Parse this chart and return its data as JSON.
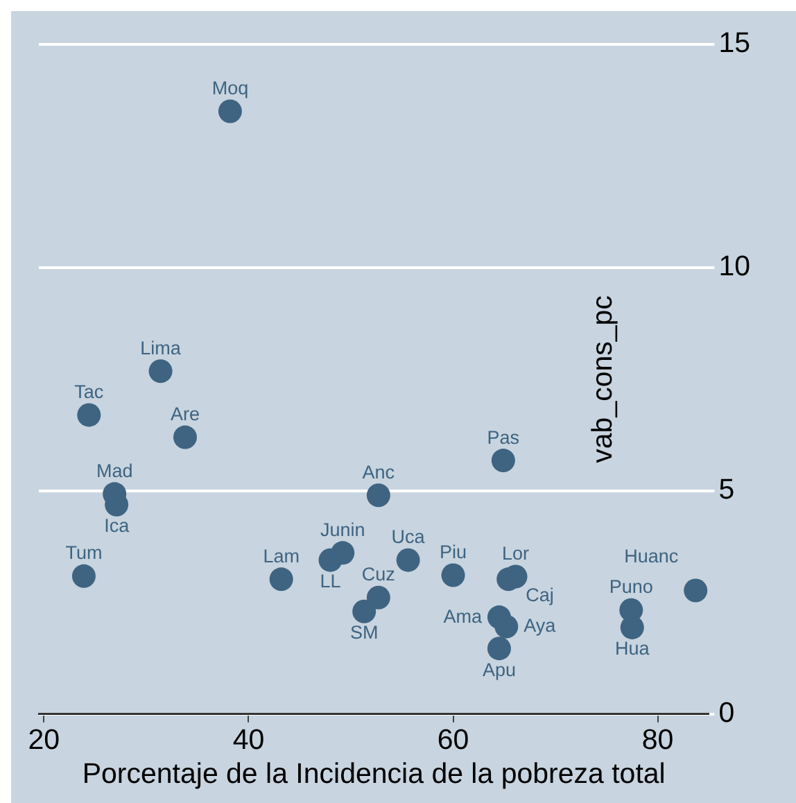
{
  "chart_data": {
    "type": "scatter",
    "xlabel": "Porcentaje de la Incidencia de la pobreza total",
    "ylabel": "vab_cons_pc",
    "x": [
      38.2,
      31.4,
      24.4,
      33.8,
      26.9,
      27.1,
      23.9,
      52.7,
      64.9,
      43.2,
      48.0,
      49.2,
      55.6,
      60.0,
      52.7,
      51.3,
      65.4,
      66.1,
      64.5,
      65.2,
      64.5,
      77.4,
      77.5,
      83.7
    ],
    "values": [
      13.5,
      7.68,
      6.7,
      6.2,
      4.93,
      4.69,
      3.09,
      4.9,
      5.68,
      3.02,
      3.45,
      3.61,
      3.45,
      3.11,
      2.61,
      2.3,
      3.02,
      3.08,
      2.17,
      1.96,
      1.47,
      2.33,
      1.94,
      2.77
    ],
    "color": "#3e6481",
    "marker": "circle",
    "grid": "y",
    "xlim": [
      19.5,
      85
    ],
    "xticks": [
      20,
      40,
      60,
      80
    ],
    "ylim": [
      0,
      15
    ],
    "yticks": [
      0,
      5,
      10,
      15
    ],
    "annotations": [
      {
        "text": "Moq",
        "x": 38.2,
        "y": 13.5
      },
      {
        "text": "Lima",
        "x": 31.4,
        "y": 7.68
      },
      {
        "text": "Tac",
        "x": 24.4,
        "y": 6.7
      },
      {
        "text": "Are",
        "x": 33.8,
        "y": 6.2
      },
      {
        "text": "Mad",
        "x": 26.9,
        "y": 4.93
      },
      {
        "text": "Ica",
        "x": 27.1,
        "y": 4.69
      },
      {
        "text": "Tum",
        "x": 23.9,
        "y": 3.09
      },
      {
        "text": "Anc",
        "x": 52.7,
        "y": 4.9
      },
      {
        "text": "Pas",
        "x": 64.9,
        "y": 5.68
      },
      {
        "text": "Lam",
        "x": 43.2,
        "y": 3.02
      },
      {
        "text": "LL",
        "x": 48.0,
        "y": 3.45
      },
      {
        "text": "Junin",
        "x": 49.2,
        "y": 3.61
      },
      {
        "text": "Uca",
        "x": 55.6,
        "y": 3.45
      },
      {
        "text": "Piu",
        "x": 60.0,
        "y": 3.11
      },
      {
        "text": "Cuz",
        "x": 52.7,
        "y": 2.61
      },
      {
        "text": "SM",
        "x": 51.3,
        "y": 2.3
      },
      {
        "text": "Caj",
        "x": 65.4,
        "y": 3.02
      },
      {
        "text": "Lor",
        "x": 66.1,
        "y": 3.08
      },
      {
        "text": "Ama",
        "x": 64.5,
        "y": 2.17
      },
      {
        "text": "Aya",
        "x": 65.2,
        "y": 1.96
      },
      {
        "text": "Apu",
        "x": 64.5,
        "y": 1.47
      },
      {
        "text": "Puno",
        "x": 77.4,
        "y": 2.33
      },
      {
        "text": "Hua",
        "x": 77.5,
        "y": 1.94
      },
      {
        "text": "Huanc",
        "x": 83.7,
        "y": 2.77
      }
    ]
  }
}
